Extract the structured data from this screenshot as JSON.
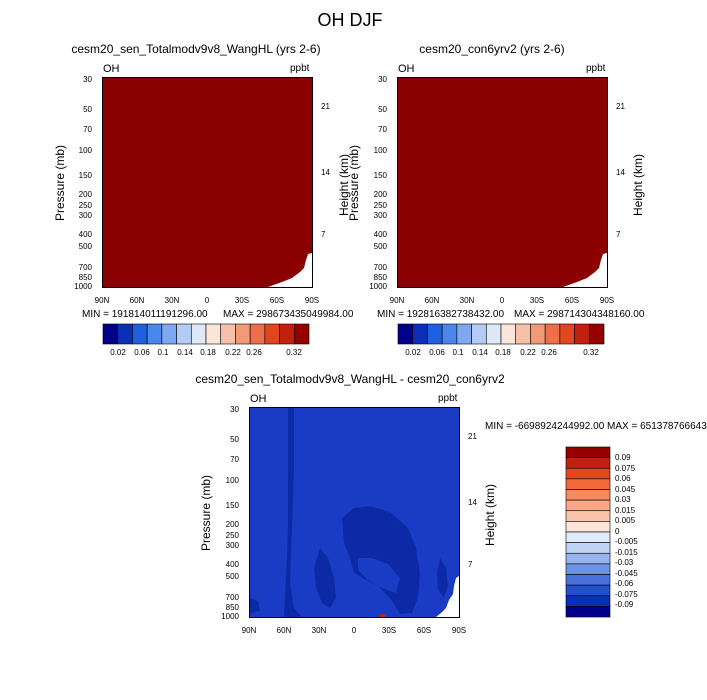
{
  "figure": {
    "title": "OH DJF"
  },
  "chart_data": [
    {
      "type": "heatmap",
      "panel": "left",
      "title": "cesm20_sen_Totalmodv9v8_WangHL (yrs 2-6)",
      "species": "OH",
      "units": "ppbt",
      "ylabel": "Pressure (mb)",
      "ylabel_right": "Height (km)",
      "yticks": [
        "30",
        "50",
        "70",
        "100",
        "150",
        "200",
        "250",
        "300",
        "400",
        "500",
        "700",
        "850",
        "1000"
      ],
      "yticks_right": [
        "21",
        "14",
        "7"
      ],
      "xticks": [
        "90N",
        "60N",
        "30N",
        "0",
        "30S",
        "60S",
        "90S"
      ],
      "min_text": "MIN = 191814011191296.00",
      "max_text": "MAX = 298673435049984.00",
      "colorbar_labels": [
        "0.02",
        "0.06",
        "0.1",
        "0.14",
        "0.18",
        "0.22",
        "0.26",
        "0.32"
      ],
      "fill_color": "#8b0000"
    },
    {
      "type": "heatmap",
      "panel": "right",
      "title": "cesm20_con6yrv2 (yrs 2-6)",
      "species": "OH",
      "units": "ppbt",
      "ylabel": "Pressure (mb)",
      "ylabel_right": "Height (km)",
      "yticks": [
        "30",
        "50",
        "70",
        "100",
        "150",
        "200",
        "250",
        "300",
        "400",
        "500",
        "700",
        "850",
        "1000"
      ],
      "yticks_right": [
        "21",
        "14",
        "7"
      ],
      "xticks": [
        "90N",
        "60N",
        "30N",
        "0",
        "30S",
        "60S",
        "90S"
      ],
      "min_text": "MIN = 192816382738432.00",
      "max_text": "MAX = 298714304348160.00",
      "colorbar_labels": [
        "0.02",
        "0.06",
        "0.1",
        "0.14",
        "0.18",
        "0.22",
        "0.26",
        "0.32"
      ],
      "fill_color": "#8b0000"
    },
    {
      "type": "heatmap",
      "panel": "difference",
      "title": "cesm20_sen_Totalmodv9v8_WangHL - cesm20_con6yrv2",
      "species": "OH",
      "units": "ppbt",
      "ylabel": "Pressure (mb)",
      "ylabel_right": "Height (km)",
      "yticks": [
        "30",
        "50",
        "70",
        "100",
        "150",
        "200",
        "250",
        "300",
        "400",
        "500",
        "700",
        "850",
        "1000"
      ],
      "yticks_right": [
        "21",
        "14",
        "7"
      ],
      "xticks": [
        "90N",
        "60N",
        "30N",
        "0",
        "30S",
        "60S",
        "90S"
      ],
      "min_text": "MIN = -6698924244992.00",
      "max_text": "MAX = 651378766643",
      "colorbar_labels": [
        "0.09",
        "0.075",
        "0.06",
        "0.045",
        "0.03",
        "0.015",
        "0.005",
        "0",
        "-0.005",
        "-0.015",
        "-0.03",
        "-0.045",
        "-0.06",
        "-0.075",
        "-0.09"
      ]
    }
  ],
  "colors": {
    "seq_colorbar": [
      "#00008b",
      "#0a2fb4",
      "#1e5fe0",
      "#4a86ec",
      "#7fa8f0",
      "#b3cbf5",
      "#dde9f9",
      "#fbe5d8",
      "#f7c0a8",
      "#f29978",
      "#ec6f49",
      "#e2461f",
      "#c2200f",
      "#950000"
    ],
    "div_colorbar": [
      "#950000",
      "#c2200f",
      "#e2461f",
      "#f26a3c",
      "#f7895a",
      "#f9a789",
      "#fac4ab",
      "#fde5d8",
      "#dfeafa",
      "#bfd3f4",
      "#98b4ee",
      "#6e92e6",
      "#4a72de",
      "#2350cc",
      "#0a2fb4",
      "#00008b"
    ],
    "diff_base": "#1a3bc4",
    "diff_dark": "#0d2aa6"
  }
}
